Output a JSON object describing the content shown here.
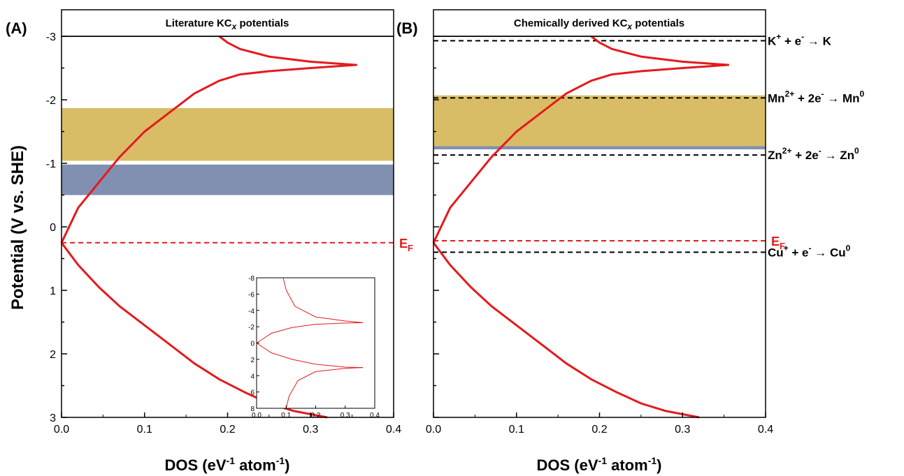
{
  "figure": {
    "ylabel": "Potential (V vs. SHE)",
    "xlabel_main": "DOS (eV",
    "xlabel_sup1": "-1",
    "xlabel_mid": " atom",
    "xlabel_sup2": "-1",
    "xlabel_end": ")"
  },
  "colors": {
    "curve": "#e41a1c",
    "gold_band": "#d9bd66",
    "blue_band": "#8190b0",
    "ef_line": "#e41a1c",
    "ref_line": "#000000"
  },
  "chart_data": [
    {
      "type": "line",
      "panel_label": "(A)",
      "title_pre": "Literature KC",
      "title_sub": "x",
      "title_post": " potentials",
      "xlim": [
        0.0,
        0.4
      ],
      "ylim": [
        -3,
        3
      ],
      "y_inverted": true,
      "xticks": [
        "0.0",
        "0.1",
        "0.2",
        "0.3",
        "0.4"
      ],
      "yticks": [
        "-3",
        "-2",
        "-1",
        "0",
        "1",
        "2",
        "3"
      ],
      "series": [
        {
          "x": [
            0.19,
            0.2,
            0.215,
            0.25,
            0.3,
            0.355,
            0.3,
            0.25,
            0.215,
            0.19,
            0.16,
            0.13,
            0.1,
            0.07,
            0.045,
            0.02,
            0.0
          ],
          "y": [
            -3.0,
            -2.9,
            -2.8,
            -2.68,
            -2.6,
            -2.55,
            -2.5,
            -2.45,
            -2.4,
            -2.3,
            -2.1,
            -1.8,
            -1.5,
            -1.1,
            -0.7,
            -0.3,
            0.25
          ]
        },
        {
          "x": [
            0.0,
            0.02,
            0.045,
            0.07,
            0.1,
            0.13,
            0.16,
            0.19,
            0.22,
            0.25,
            0.28,
            0.32
          ],
          "y": [
            0.25,
            0.6,
            0.95,
            1.25,
            1.55,
            1.85,
            2.15,
            2.4,
            2.6,
            2.78,
            2.9,
            3.0
          ]
        }
      ],
      "bands": [
        {
          "name": "gold",
          "y_range": [
            -1.87,
            -1.04
          ]
        },
        {
          "name": "blue",
          "y_range": [
            -0.98,
            -0.5
          ]
        }
      ],
      "fermi": {
        "label_main": "E",
        "label_sub": "F",
        "y": 0.25
      },
      "inset": {
        "xlim": [
          0.0,
          0.4
        ],
        "ylim": [
          -8,
          8
        ],
        "xticks": [
          "0.0",
          "0.1",
          "0.2",
          "0.3",
          "0.4"
        ],
        "yticks": [
          "-8",
          "-6",
          "-4",
          "-2",
          "0",
          "2",
          "4",
          "6",
          "8"
        ]
      }
    },
    {
      "type": "line",
      "panel_label": "(B)",
      "title_pre": "Chemically derived KC",
      "title_sub": "x",
      "title_post": " potentials",
      "xlim": [
        0.0,
        0.4
      ],
      "ylim": [
        -3,
        3
      ],
      "y_inverted": true,
      "xticks": [
        "0.0",
        "0.1",
        "0.2",
        "0.3",
        "0.4"
      ],
      "series": [
        {
          "x": [
            0.19,
            0.2,
            0.215,
            0.25,
            0.3,
            0.355,
            0.3,
            0.25,
            0.215,
            0.19,
            0.16,
            0.13,
            0.1,
            0.07,
            0.045,
            0.02,
            0.0
          ],
          "y": [
            -3.0,
            -2.9,
            -2.8,
            -2.68,
            -2.6,
            -2.55,
            -2.5,
            -2.45,
            -2.4,
            -2.3,
            -2.1,
            -1.8,
            -1.5,
            -1.1,
            -0.7,
            -0.3,
            0.25
          ]
        },
        {
          "x": [
            0.0,
            0.02,
            0.045,
            0.07,
            0.1,
            0.13,
            0.16,
            0.19,
            0.22,
            0.25,
            0.28,
            0.32
          ],
          "y": [
            0.25,
            0.6,
            0.95,
            1.25,
            1.55,
            1.85,
            2.15,
            2.4,
            2.6,
            2.78,
            2.9,
            3.0
          ]
        }
      ],
      "bands": [
        {
          "name": "gold",
          "y_range": [
            -2.07,
            -1.27
          ]
        },
        {
          "name": "blue",
          "y_range": [
            -1.27,
            -1.22
          ]
        }
      ],
      "fermi": {
        "label_main": "E",
        "label_sub": "F",
        "y": 0.22
      },
      "references": [
        {
          "y": -2.93,
          "parts": [
            [
              "K",
              ""
            ],
            [
              "+",
              "sup"
            ],
            [
              " + e",
              ""
            ],
            [
              "-",
              "sup"
            ],
            [
              " → K",
              ""
            ]
          ]
        },
        {
          "y": -2.03,
          "parts": [
            [
              "Mn",
              ""
            ],
            [
              "2+",
              "sup"
            ],
            [
              " + 2e",
              ""
            ],
            [
              "-",
              "sup"
            ],
            [
              " → Mn",
              ""
            ],
            [
              "0",
              "sup"
            ]
          ]
        },
        {
          "y": -1.13,
          "parts": [
            [
              "Zn",
              ""
            ],
            [
              "2+",
              "sup"
            ],
            [
              " + 2e",
              ""
            ],
            [
              "-",
              "sup"
            ],
            [
              " → Zn",
              ""
            ],
            [
              "0",
              "sup"
            ]
          ]
        },
        {
          "y": 0.4,
          "parts": [
            [
              "Cu",
              ""
            ],
            [
              "+",
              "sup"
            ],
            [
              " + e",
              ""
            ],
            [
              "-",
              "sup"
            ],
            [
              " → Cu",
              ""
            ],
            [
              "0",
              "sup"
            ]
          ]
        }
      ]
    }
  ]
}
